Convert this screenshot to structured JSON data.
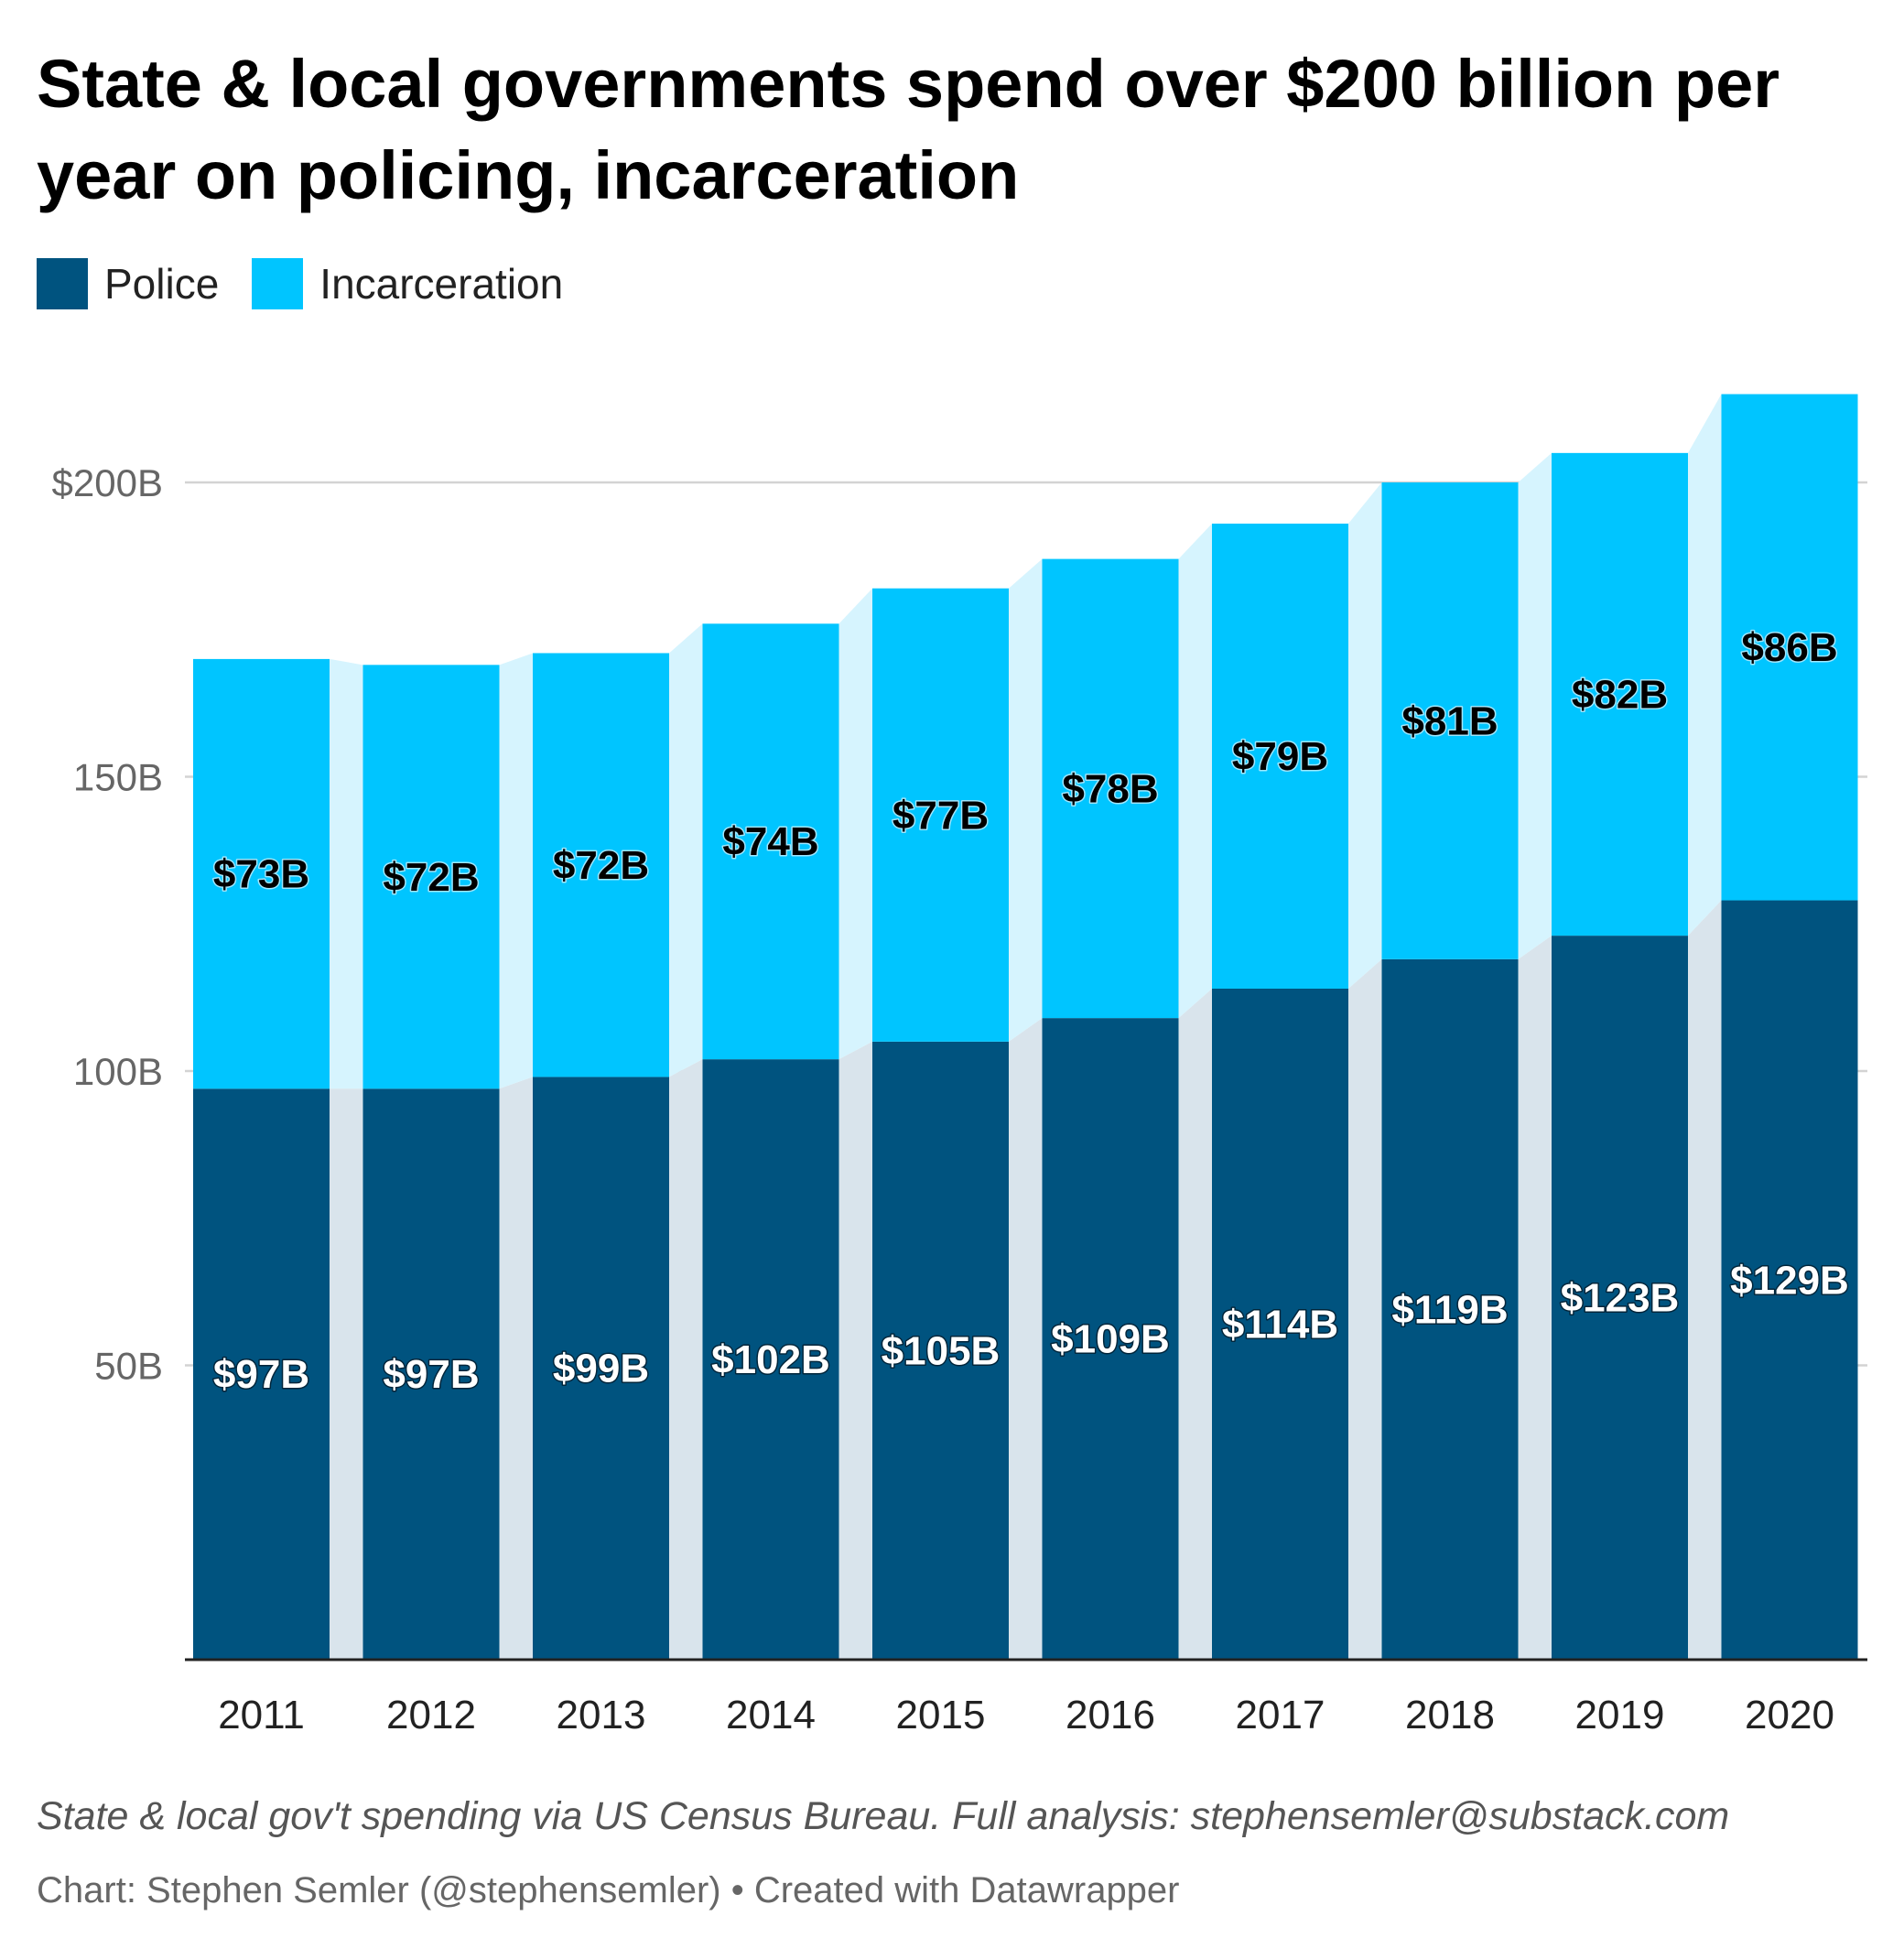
{
  "title": "State & local governments spend over $200 billion per year on policing, incarceration",
  "footer": {
    "source": "State & local gov't spending via US Census Bureau. Full analysis: stephensemler@substack.com",
    "byline": "Chart: Stephen Semler (@stephensemler) • Created with Datawrapper"
  },
  "colors": {
    "police": "#00537f",
    "incarceration": "#00c5ff",
    "police_connector": "#d9e4ec",
    "incarceration_connector": "#d6f4fe",
    "gridline": "#d3d3d3",
    "axis": "#222222"
  },
  "chart_data": {
    "type": "bar",
    "stacked": true,
    "legend_position": "top-left",
    "grid": true,
    "categories": [
      "2011",
      "2012",
      "2013",
      "2014",
      "2015",
      "2016",
      "2017",
      "2018",
      "2019",
      "2020"
    ],
    "series": [
      {
        "name": "Police",
        "color": "#00537f",
        "values": [
          97,
          97,
          99,
          102,
          105,
          109,
          114,
          119,
          123,
          129
        ],
        "labels": [
          "$97B",
          "$97B",
          "$99B",
          "$102B",
          "$105B",
          "$109B",
          "$114B",
          "$119B",
          "$123B",
          "$129B"
        ]
      },
      {
        "name": "Incarceration",
        "color": "#00c5ff",
        "values": [
          73,
          72,
          72,
          74,
          77,
          78,
          79,
          81,
          82,
          86
        ],
        "labels": [
          "$73B",
          "$72B",
          "$72B",
          "$74B",
          "$77B",
          "$78B",
          "$79B",
          "$81B",
          "$82B",
          "$86B"
        ]
      }
    ],
    "ylim": [
      0,
      215
    ],
    "yticks": [
      {
        "value": 200,
        "label": "$200B"
      },
      {
        "value": 150,
        "label": "150B"
      },
      {
        "value": 100,
        "label": "100B"
      },
      {
        "value": 50,
        "label": "50B"
      }
    ]
  }
}
